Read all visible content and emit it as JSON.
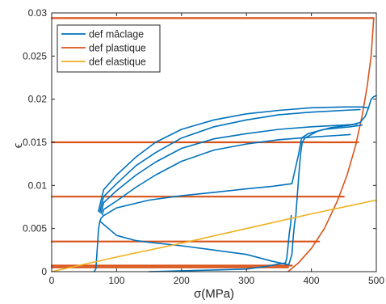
{
  "chart_data": {
    "type": "line",
    "xlabel": "σ(MPa)",
    "ylabel": "ϵ",
    "xlim": [
      0,
      500
    ],
    "ylim": [
      0,
      0.03
    ],
    "x_ticks": [
      0,
      100,
      200,
      300,
      400,
      500
    ],
    "y_ticks": [
      0,
      0.005,
      0.01,
      0.015,
      0.02,
      0.025,
      0.03
    ],
    "x_tick_labels": [
      "0",
      "100",
      "200",
      "300",
      "400",
      "500"
    ],
    "y_tick_labels": [
      "0",
      "0.005",
      "0.01",
      "0.015",
      "0.02",
      "0.025",
      "0.03"
    ],
    "grid": false,
    "legend_position": "top-left",
    "series": [
      {
        "name": "def mâclage",
        "color": "#0072BD",
        "segments": [
          [
            [
              65,
              0
            ],
            [
              68,
              0.0003
            ],
            [
              70,
              0.0025
            ],
            [
              72,
              0.0048
            ],
            [
              74,
              0.0058
            ],
            [
              76,
              0.0062
            ],
            [
              80,
              0.0065
            ],
            [
              100,
              0.0074
            ],
            [
              150,
              0.0083
            ],
            [
              200,
              0.0088
            ],
            [
              250,
              0.0092
            ],
            [
              300,
              0.0096
            ],
            [
              340,
              0.0099
            ],
            [
              370,
              0.0102
            ],
            [
              380,
              0.0135
            ],
            [
              385,
              0.0155
            ],
            [
              395,
              0.016
            ],
            [
              420,
              0.0165
            ],
            [
              460,
              0.0168
            ],
            [
              478,
              0.017
            ]
          ],
          [
            [
              72,
              0.007
            ],
            [
              80,
              0.0095
            ],
            [
              100,
              0.0112
            ],
            [
              130,
              0.0133
            ],
            [
              160,
              0.015
            ],
            [
              200,
              0.0165
            ],
            [
              250,
              0.0176
            ],
            [
              300,
              0.0183
            ],
            [
              350,
              0.0187
            ],
            [
              400,
              0.019
            ],
            [
              450,
              0.0191
            ],
            [
              478,
              0.0191
            ],
            [
              487,
              0.019
            ]
          ],
          [
            [
              74,
              0.0069
            ],
            [
              80,
              0.0087
            ],
            [
              100,
              0.0102
            ],
            [
              130,
              0.0123
            ],
            [
              160,
              0.0138
            ],
            [
              200,
              0.0155
            ],
            [
              250,
              0.0168
            ],
            [
              300,
              0.0176
            ],
            [
              350,
              0.0182
            ],
            [
              400,
              0.0185
            ],
            [
              450,
              0.0187
            ],
            [
              475,
              0.0188
            ]
          ],
          [
            [
              76,
              0.0068
            ],
            [
              80,
              0.008
            ],
            [
              100,
              0.0094
            ],
            [
              130,
              0.0112
            ],
            [
              160,
              0.0127
            ],
            [
              200,
              0.0143
            ],
            [
              250,
              0.0154
            ],
            [
              300,
              0.016
            ],
            [
              350,
              0.0165
            ],
            [
              400,
              0.0168
            ],
            [
              450,
              0.017
            ],
            [
              470,
              0.0171
            ]
          ],
          [
            [
              78,
              0.0066
            ],
            [
              80,
              0.0072
            ],
            [
              100,
              0.0082
            ],
            [
              130,
              0.0098
            ],
            [
              160,
              0.0112
            ],
            [
              200,
              0.0128
            ],
            [
              250,
              0.0141
            ],
            [
              300,
              0.0148
            ],
            [
              350,
              0.0153
            ],
            [
              400,
              0.0156
            ],
            [
              440,
              0.0158
            ],
            [
              460,
              0.0159
            ]
          ],
          [
            [
              75,
              0.0058
            ],
            [
              100,
              0.0042
            ],
            [
              130,
              0.0036
            ],
            [
              150,
              0.0034
            ],
            [
              200,
              0.003
            ],
            [
              250,
              0.0025
            ],
            [
              300,
              0.002
            ],
            [
              340,
              0.0012
            ],
            [
              365,
              0.0008
            ],
            [
              370,
              0.002
            ],
            [
              372,
              0.004
            ],
            [
              374,
              0.0055
            ],
            [
              376,
              0.0065
            ],
            [
              378,
              0.0085
            ],
            [
              380,
              0.0105
            ],
            [
              382,
              0.0125
            ],
            [
              384,
              0.014
            ],
            [
              386,
              0.015
            ],
            [
              390,
              0.0155
            ]
          ],
          [
            [
              150,
              0
            ],
            [
              200,
              0.0001
            ],
            [
              250,
              0.0002
            ],
            [
              300,
              0.0003
            ],
            [
              330,
              0.0006
            ],
            [
              350,
              0.0009
            ],
            [
              360,
              0.001
            ],
            [
              362,
              0.0015
            ],
            [
              364,
              0.003
            ],
            [
              366,
              0.0045
            ],
            [
              368,
              0.0055
            ],
            [
              369,
              0.0065
            ]
          ],
          [
            [
              390,
              0.0155
            ],
            [
              410,
              0.0163
            ],
            [
              430,
              0.0167
            ],
            [
              460,
              0.017
            ],
            [
              475,
              0.0173
            ],
            [
              483,
              0.018
            ],
            [
              488,
              0.019
            ],
            [
              492,
              0.02
            ],
            [
              496,
              0.0203
            ],
            [
              500,
              0.0204
            ]
          ]
        ]
      },
      {
        "name": "def plastique",
        "color": "#D95319",
        "segments": [
          [
            [
              0,
              0.0294
            ],
            [
              496,
              0.0294
            ]
          ],
          [
            [
              0,
              0.015
            ],
            [
              472,
              0.015
            ]
          ],
          [
            [
              0,
              0.0087
            ],
            [
              450,
              0.0087
            ]
          ],
          [
            [
              0,
              0.0035
            ],
            [
              412,
              0.0035
            ]
          ],
          [
            [
              0,
              0.0007
            ],
            [
              370,
              0.0007
            ]
          ],
          [
            [
              0,
              0.0005
            ],
            [
              364,
              0.0005
            ]
          ],
          [
            [
              364,
              0
            ],
            [
              380,
              0.001
            ],
            [
              400,
              0.0027
            ],
            [
              420,
              0.005
            ],
            [
              440,
              0.0082
            ],
            [
              455,
              0.0112
            ],
            [
              468,
              0.0146
            ],
            [
              478,
              0.018
            ],
            [
              486,
              0.0215
            ],
            [
              492,
              0.025
            ],
            [
              496,
              0.0294
            ]
          ]
        ]
      },
      {
        "name": "def elastique",
        "color": "#EDB120",
        "segments": [
          [
            [
              0,
              0
            ],
            [
              100,
              0.0017
            ],
            [
              200,
              0.0033
            ],
            [
              300,
              0.005
            ],
            [
              400,
              0.0067
            ],
            [
              500,
              0.0083
            ]
          ]
        ]
      }
    ]
  }
}
